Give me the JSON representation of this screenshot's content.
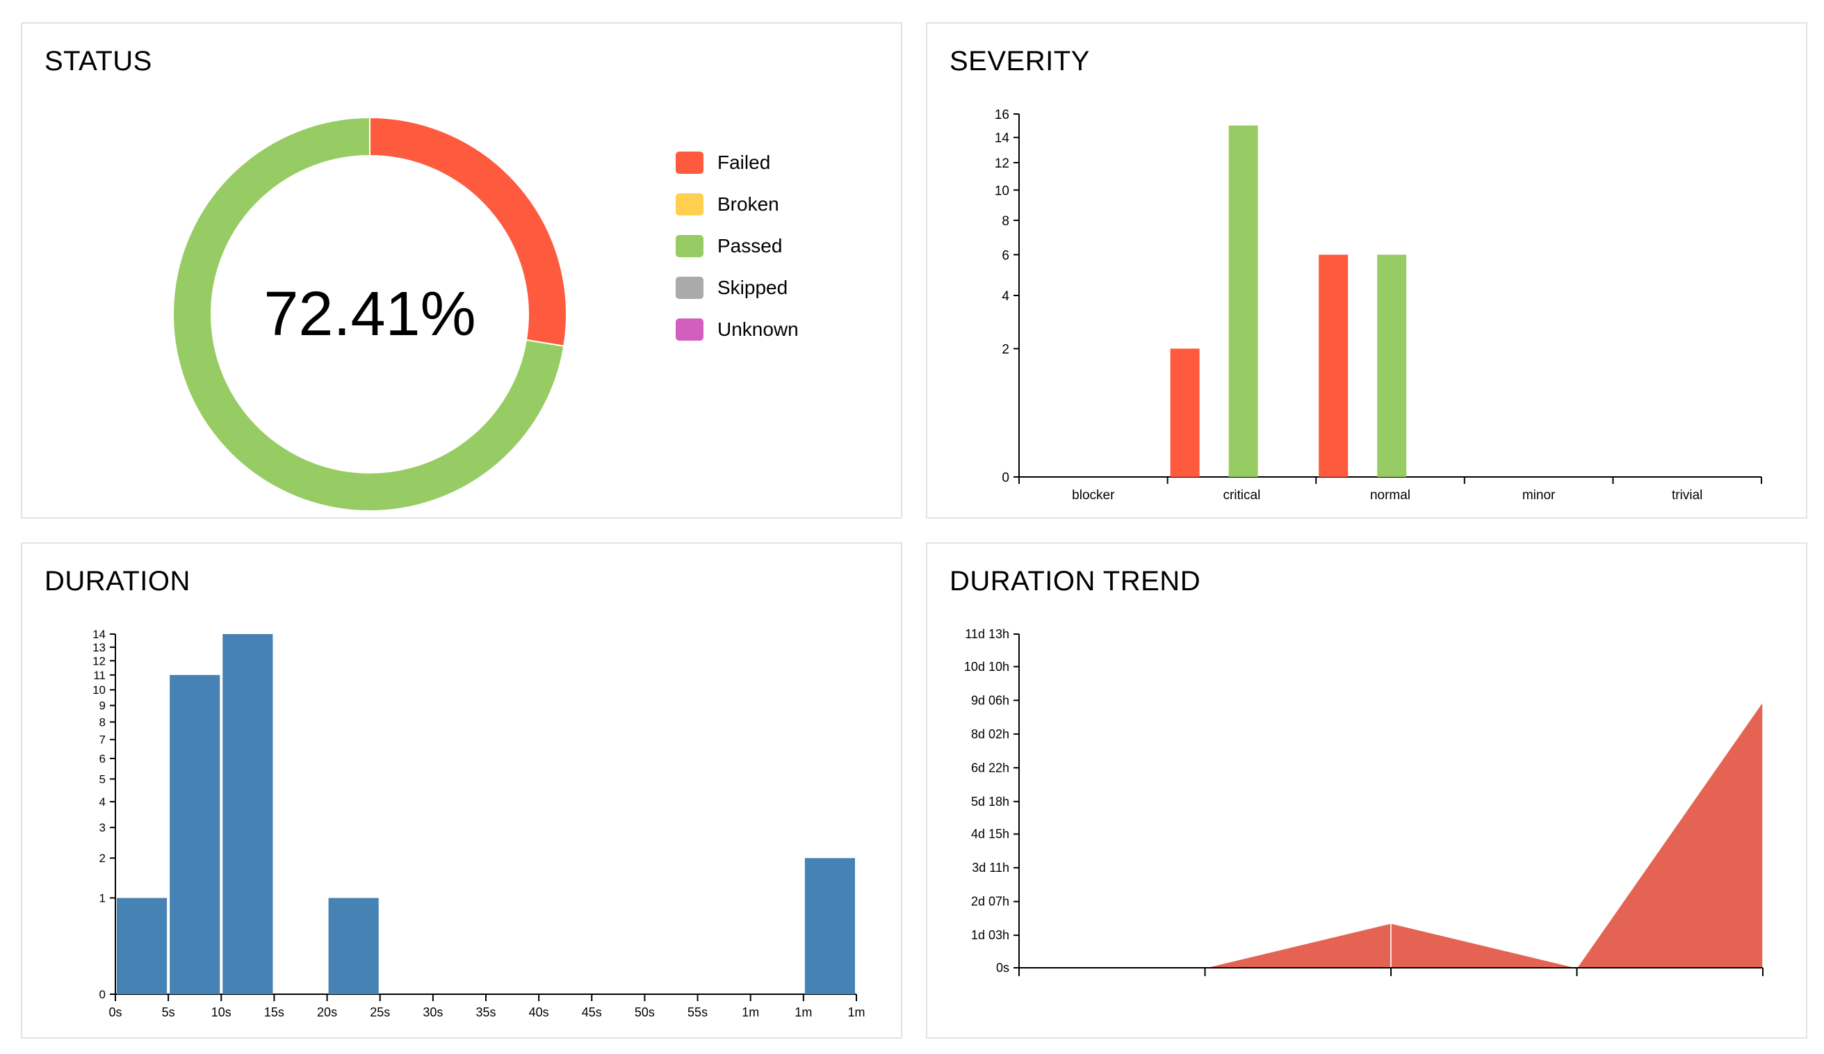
{
  "panels": {
    "status": {
      "title": "STATUS"
    },
    "severity": {
      "title": "SEVERITY"
    },
    "duration": {
      "title": "DURATION"
    },
    "trend": {
      "title": "DURATION TREND"
    }
  },
  "status": {
    "percent_label": "72.41%",
    "legend": [
      {
        "label": "Failed",
        "color": "#fd5a3e"
      },
      {
        "label": "Broken",
        "color": "#ffd050"
      },
      {
        "label": "Passed",
        "color": "#97cc64"
      },
      {
        "label": "Skipped",
        "color": "#aaaaaa"
      },
      {
        "label": "Unknown",
        "color": "#d35ebe"
      }
    ]
  },
  "chart_data": [
    {
      "type": "pie",
      "title": "STATUS",
      "center_label": "72.41%",
      "slices": [
        {
          "name": "Failed",
          "value": 8,
          "color": "#fd5a3e"
        },
        {
          "name": "Broken",
          "value": 0,
          "color": "#ffd050"
        },
        {
          "name": "Passed",
          "value": 21,
          "color": "#97cc64"
        },
        {
          "name": "Skipped",
          "value": 0,
          "color": "#aaaaaa"
        },
        {
          "name": "Unknown",
          "value": 0,
          "color": "#d35ebe"
        }
      ]
    },
    {
      "type": "bar",
      "title": "SEVERITY",
      "categories": [
        "blocker",
        "critical",
        "normal",
        "minor",
        "trivial"
      ],
      "series": [
        {
          "name": "Failed",
          "color": "#fd5a3e",
          "values": [
            0,
            2,
            6,
            0,
            0
          ]
        },
        {
          "name": "Passed",
          "color": "#97cc64",
          "values": [
            0,
            15,
            6,
            0,
            0
          ]
        }
      ],
      "yscale": "sqrt",
      "ylim": [
        0,
        16
      ],
      "yticks": [
        0,
        2,
        4,
        6,
        8,
        10,
        12,
        14,
        16
      ]
    },
    {
      "type": "bar",
      "title": "DURATION",
      "xticks": [
        "0s",
        "5s",
        "10s",
        "15s",
        "20s",
        "25s",
        "30s",
        "35s",
        "40s",
        "45s",
        "50s",
        "55s",
        "1m",
        "1m",
        "1m"
      ],
      "bins": [
        {
          "from": 0,
          "to": 5,
          "count": 1
        },
        {
          "from": 5,
          "to": 10,
          "count": 11
        },
        {
          "from": 10,
          "to": 15,
          "count": 14
        },
        {
          "from": 15,
          "to": 20,
          "count": 0
        },
        {
          "from": 20,
          "to": 25,
          "count": 1
        },
        {
          "from": 25,
          "to": 30,
          "count": 0
        },
        {
          "from": 30,
          "to": 35,
          "count": 0
        },
        {
          "from": 35,
          "to": 40,
          "count": 0
        },
        {
          "from": 40,
          "to": 45,
          "count": 0
        },
        {
          "from": 45,
          "to": 50,
          "count": 0
        },
        {
          "from": 50,
          "to": 55,
          "count": 0
        },
        {
          "from": 55,
          "to": 60,
          "count": 0
        },
        {
          "from": 60,
          "to": 65,
          "count": 0
        },
        {
          "from": 65,
          "to": 70,
          "count": 2
        }
      ],
      "xlim": [
        0,
        70
      ],
      "yscale": "sqrt",
      "ylim": [
        0,
        14
      ],
      "yticks": [
        0,
        1,
        2,
        3,
        4,
        5,
        6,
        7,
        8,
        9,
        10,
        11,
        12,
        13,
        14
      ],
      "color": "#4682b4"
    },
    {
      "type": "area",
      "title": "DURATION TREND",
      "x": [
        0,
        1,
        2,
        3,
        4
      ],
      "values_hours": [
        0,
        0,
        37,
        0,
        221
      ],
      "ylim_hours": [
        0,
        277
      ],
      "yticks": [
        {
          "label": "0s",
          "hours": 0
        },
        {
          "label": "1d 03h",
          "hours": 27
        },
        {
          "label": "2d 07h",
          "hours": 55
        },
        {
          "label": "3d 11h",
          "hours": 83
        },
        {
          "label": "4d 15h",
          "hours": 111
        },
        {
          "label": "5d 18h",
          "hours": 138
        },
        {
          "label": "6d 22h",
          "hours": 166
        },
        {
          "label": "8d 02h",
          "hours": 194
        },
        {
          "label": "9d 06h",
          "hours": 222
        },
        {
          "label": "10d 10h",
          "hours": 250
        },
        {
          "label": "11d 13h",
          "hours": 277
        }
      ],
      "color": "#e56353"
    }
  ]
}
